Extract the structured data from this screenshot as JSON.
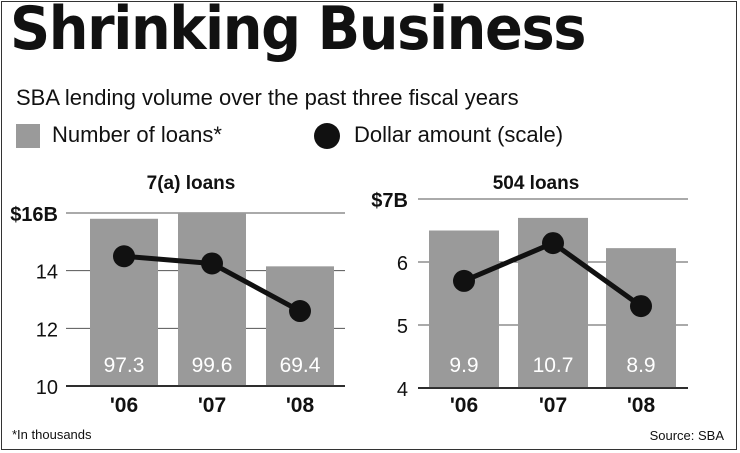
{
  "title": "Shrinking Business",
  "subtitle": "SBA lending volume over the past three fiscal years",
  "legend": {
    "bars_label": "Number of loans*",
    "line_label": "Dollar amount (scale)"
  },
  "footnote": "*In thousands",
  "source": "Source: SBA",
  "colors": {
    "bar": "#9a9a9a",
    "line": "#111111",
    "bar_label": "#ffffff",
    "grid": "#555555"
  },
  "chart_data": [
    {
      "type": "bar",
      "title": "7(a) loans",
      "categories": [
        "'06",
        "'07",
        "'08"
      ],
      "series": [
        {
          "name": "Number of loans*",
          "type": "bar",
          "values": [
            97.3,
            99.6,
            69.4
          ],
          "value_labels": [
            "97.3",
            "99.6",
            "69.4"
          ],
          "scale_values": [
            15.8,
            16.0,
            14.15
          ]
        },
        {
          "name": "Dollar amount (scale)",
          "type": "line",
          "values": [
            14.5,
            14.25,
            12.6
          ]
        }
      ],
      "y_ticks": [
        10,
        12,
        14,
        16
      ],
      "y_tick_labels": [
        "10",
        "12",
        "14",
        "$16B"
      ],
      "ylim": [
        10,
        16
      ],
      "grid": true
    },
    {
      "type": "bar",
      "title": "504 loans",
      "categories": [
        "'06",
        "'07",
        "'08"
      ],
      "series": [
        {
          "name": "Number of loans*",
          "type": "bar",
          "values": [
            9.9,
            10.7,
            8.9
          ],
          "value_labels": [
            "9.9",
            "10.7",
            "8.9"
          ],
          "scale_values": [
            6.5,
            6.7,
            6.22
          ]
        },
        {
          "name": "Dollar amount (scale)",
          "type": "line",
          "values": [
            5.7,
            6.3,
            5.3
          ]
        }
      ],
      "y_ticks": [
        4,
        5,
        6,
        7
      ],
      "y_tick_labels": [
        "4",
        "5",
        "6",
        "$7B"
      ],
      "ylim": [
        4,
        7
      ],
      "grid": true
    }
  ]
}
